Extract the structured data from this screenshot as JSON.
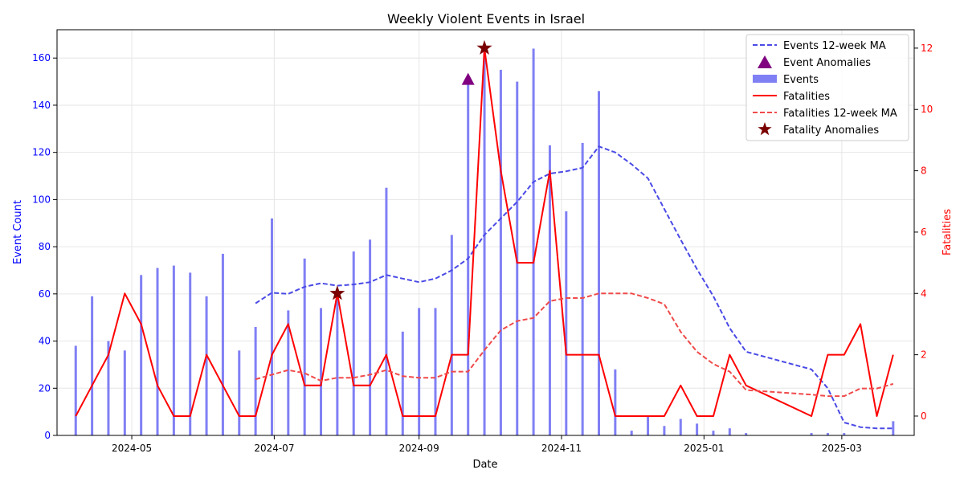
{
  "chart_data": {
    "type": "bar+line",
    "title": "Weekly Violent Events in Israel",
    "xlabel": "Date",
    "ylabel_left": "Event Count",
    "ylabel_right": "Fatalities",
    "ylim_left": [
      0,
      172
    ],
    "ylim_right": [
      -0.63,
      12.6
    ],
    "left_ticks": [
      "0",
      "20",
      "40",
      "60",
      "80",
      "100",
      "120",
      "140",
      "160"
    ],
    "right_ticks": [
      "0",
      "2",
      "4",
      "6",
      "8",
      "10",
      "12"
    ],
    "x_ticks": [
      "2024-05",
      "2024-07",
      "2024-09",
      "2024-11",
      "2025-01",
      "2025-03"
    ],
    "x_tick_dates": [
      "2024-05-01",
      "2024-07-01",
      "2024-09-01",
      "2024-11-01",
      "2025-01-01",
      "2025-03-01"
    ],
    "xlim": [
      "2024-03-30",
      "2025-04-01"
    ],
    "grid": true,
    "legend_position": "top-right",
    "colors": {
      "events": "#8080f5",
      "events_ma": "#4a4ae6",
      "event_anomaly": "#800080",
      "fatalities": "#ff0000",
      "fatalities_ma": "#f04a4a",
      "fatality_anomaly": "#7a0000",
      "left_axis": "#0000ff",
      "right_axis": "#ff0000"
    },
    "legend": {
      "events_ma": "Events 12-week MA",
      "event_anomalies": "Event Anomalies",
      "events": "Events",
      "fatalities": "Fatalities",
      "fatalities_ma": "Fatalities 12-week MA",
      "fatality_anomalies": "Fatality Anomalies"
    },
    "events": {
      "dates": [
        "2024-04-07",
        "2024-04-14",
        "2024-04-21",
        "2024-04-28",
        "2024-05-05",
        "2024-05-12",
        "2024-05-19",
        "2024-05-26",
        "2024-06-02",
        "2024-06-09",
        "2024-06-16",
        "2024-06-23",
        "2024-06-30",
        "2024-07-07",
        "2024-07-14",
        "2024-07-21",
        "2024-07-28",
        "2024-08-04",
        "2024-08-11",
        "2024-08-18",
        "2024-08-25",
        "2024-09-01",
        "2024-09-08",
        "2024-09-15",
        "2024-09-22",
        "2024-09-29",
        "2024-10-06",
        "2024-10-13",
        "2024-10-20",
        "2024-10-27",
        "2024-11-03",
        "2024-11-10",
        "2024-11-17",
        "2024-11-24",
        "2024-12-01",
        "2024-12-08",
        "2024-12-15",
        "2024-12-22",
        "2024-12-29",
        "2025-01-05",
        "2025-01-12",
        "2025-01-19",
        "2025-02-16",
        "2025-02-23",
        "2025-03-02",
        "2025-03-23"
      ],
      "values": [
        38,
        59,
        40,
        36,
        68,
        71,
        72,
        69,
        59,
        77,
        36,
        46,
        92,
        53,
        75,
        54,
        60,
        78,
        83,
        105,
        44,
        54,
        54,
        85,
        151,
        164,
        155,
        150,
        164,
        123,
        95,
        124,
        146,
        28,
        2,
        8,
        4,
        7,
        5,
        2,
        3,
        1,
        1,
        1,
        1,
        6
      ]
    },
    "events_ma": {
      "dates": [
        "2024-06-23",
        "2024-06-30",
        "2024-07-07",
        "2024-07-14",
        "2024-07-21",
        "2024-07-28",
        "2024-08-04",
        "2024-08-11",
        "2024-08-18",
        "2024-08-25",
        "2024-09-01",
        "2024-09-08",
        "2024-09-15",
        "2024-09-22",
        "2024-09-29",
        "2024-10-06",
        "2024-10-13",
        "2024-10-20",
        "2024-10-27",
        "2024-11-03",
        "2024-11-10",
        "2024-11-17",
        "2024-11-24",
        "2024-12-01",
        "2024-12-08",
        "2024-12-15",
        "2024-12-22",
        "2024-12-29",
        "2025-01-05",
        "2025-01-12",
        "2025-01-19",
        "2025-02-16",
        "2025-02-23",
        "2025-03-02",
        "2025-03-09",
        "2025-03-16",
        "2025-03-23"
      ],
      "values": [
        56,
        60.5,
        60,
        63,
        64.5,
        63.5,
        64,
        65,
        68,
        66.5,
        65,
        66.5,
        70,
        75,
        85,
        92,
        99,
        107.5,
        111,
        112,
        113.5,
        122.5,
        120,
        115,
        109,
        96,
        83,
        70.5,
        59,
        45.5,
        35.5,
        28,
        20,
        5.5,
        3.5,
        3,
        3
      ]
    },
    "event_anomalies": [
      {
        "date": "2024-09-22",
        "value": 151
      }
    ],
    "fatalities": {
      "dates": [
        "2024-04-07",
        "2024-04-14",
        "2024-04-21",
        "2024-04-28",
        "2024-05-05",
        "2024-05-12",
        "2024-05-19",
        "2024-05-26",
        "2024-06-02",
        "2024-06-09",
        "2024-06-16",
        "2024-06-23",
        "2024-06-30",
        "2024-07-07",
        "2024-07-14",
        "2024-07-21",
        "2024-07-28",
        "2024-08-04",
        "2024-08-11",
        "2024-08-18",
        "2024-08-25",
        "2024-09-01",
        "2024-09-08",
        "2024-09-15",
        "2024-09-22",
        "2024-09-29",
        "2024-10-06",
        "2024-10-13",
        "2024-10-20",
        "2024-10-27",
        "2024-11-03",
        "2024-11-10",
        "2024-11-17",
        "2024-11-24",
        "2024-12-01",
        "2024-12-08",
        "2024-12-15",
        "2024-12-22",
        "2024-12-29",
        "2025-01-05",
        "2025-01-12",
        "2025-01-19",
        "2025-02-16",
        "2025-02-23",
        "2025-03-02",
        "2025-03-09",
        "2025-03-16",
        "2025-03-23"
      ],
      "values": [
        0,
        1,
        2,
        4,
        3,
        1,
        0,
        0,
        2,
        1,
        0,
        0,
        2,
        3,
        1,
        1,
        4,
        1,
        1,
        2,
        0,
        0,
        0,
        2,
        2,
        12,
        8,
        5,
        5,
        8,
        2,
        2,
        2,
        0,
        0,
        0,
        0,
        1,
        0,
        0,
        2,
        1,
        0,
        2,
        2,
        3,
        0,
        2
      ]
    },
    "fatalities_ma": {
      "dates": [
        "2024-06-23",
        "2024-06-30",
        "2024-07-07",
        "2024-07-14",
        "2024-07-21",
        "2024-07-28",
        "2024-08-04",
        "2024-08-11",
        "2024-08-18",
        "2024-08-25",
        "2024-09-01",
        "2024-09-08",
        "2024-09-15",
        "2024-09-22",
        "2024-09-29",
        "2024-10-06",
        "2024-10-13",
        "2024-10-20",
        "2024-10-27",
        "2024-11-03",
        "2024-11-10",
        "2024-11-17",
        "2024-11-24",
        "2024-12-01",
        "2024-12-08",
        "2024-12-15",
        "2024-12-22",
        "2024-12-29",
        "2025-01-05",
        "2025-01-12",
        "2025-01-19",
        "2025-02-16",
        "2025-02-23",
        "2025-03-02",
        "2025-03-09",
        "2025-03-16",
        "2025-03-23"
      ],
      "values": [
        1.2,
        1.35,
        1.5,
        1.4,
        1.15,
        1.25,
        1.25,
        1.35,
        1.5,
        1.3,
        1.25,
        1.25,
        1.45,
        1.45,
        2.15,
        2.8,
        3.1,
        3.2,
        3.75,
        3.85,
        3.85,
        4,
        4,
        4,
        3.85,
        3.65,
        2.75,
        2.1,
        1.7,
        1.45,
        0.85,
        0.7,
        0.65,
        0.65,
        0.9,
        0.9,
        1.05
      ]
    },
    "fatality_anomalies": [
      {
        "date": "2024-07-28",
        "value": 4
      },
      {
        "date": "2024-09-29",
        "value": 12
      }
    ]
  }
}
